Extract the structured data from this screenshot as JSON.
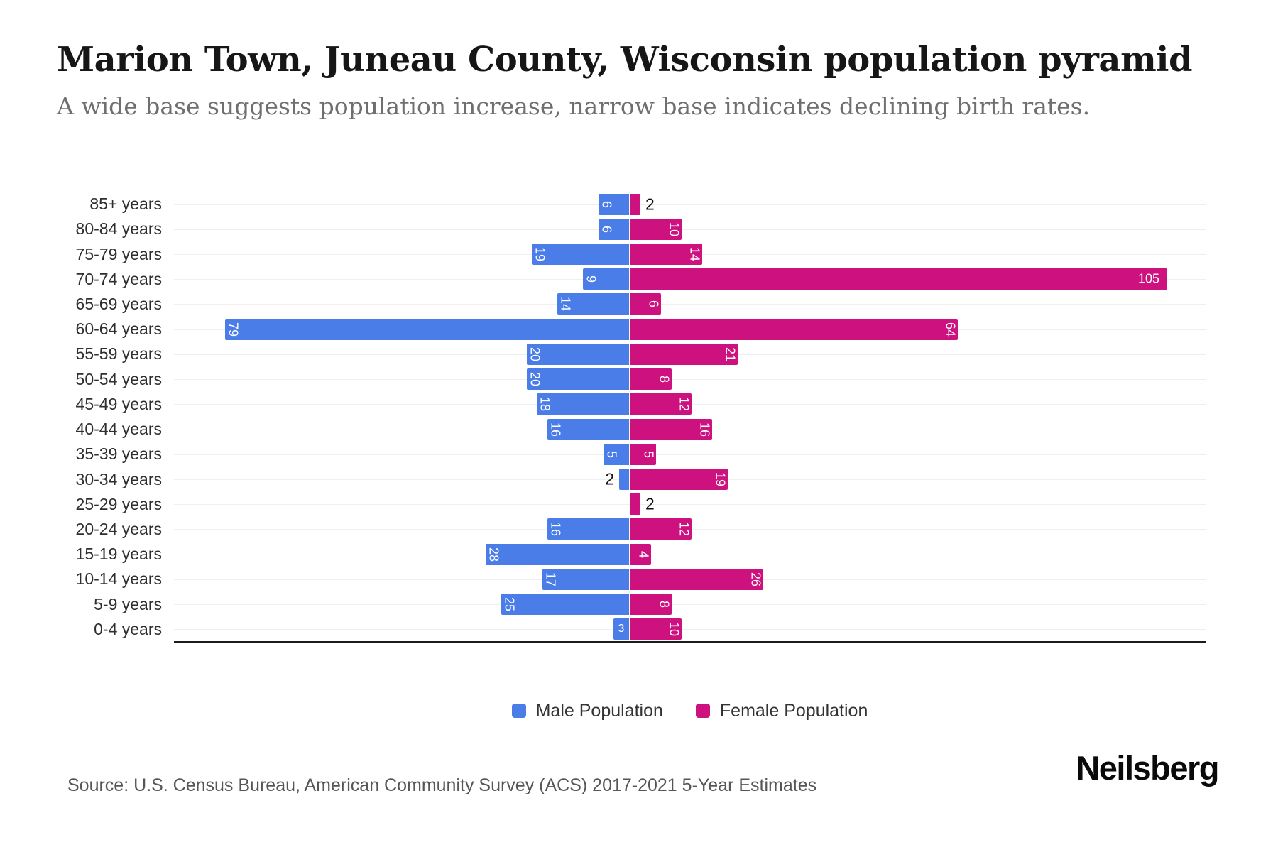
{
  "header": {
    "title": "Marion Town, Juneau County, Wisconsin population pyramid",
    "subtitle": "A wide base suggests population increase, narrow base indicates declining birth rates."
  },
  "colors": {
    "male": "#4a7de8",
    "female": "#cd117f",
    "axis": "#1b1b1b",
    "grid": "#efeff0",
    "inside_label": "#ffffff",
    "outside_label": "#111111"
  },
  "chart_data": {
    "type": "bar",
    "variant": "population-pyramid",
    "orientation": "horizontal",
    "grid": true,
    "legend_position": "bottom-center",
    "categories": [
      "85+ years",
      "80-84 years",
      "75-79 years",
      "70-74 years",
      "65-69 years",
      "60-64 years",
      "55-59 years",
      "50-54 years",
      "45-49 years",
      "40-44 years",
      "35-39 years",
      "30-34 years",
      "25-29 years",
      "20-24 years",
      "15-19 years",
      "10-14 years",
      "5-9 years",
      "0-4 years"
    ],
    "series": [
      {
        "name": "Male Population",
        "side": "left",
        "color": "#4a7de8",
        "values": [
          6,
          6,
          19,
          9,
          14,
          79,
          20,
          20,
          18,
          16,
          5,
          2,
          0,
          16,
          28,
          17,
          25,
          3
        ],
        "label_styles": [
          "rotated",
          "rotated",
          "rotated",
          "rotated",
          "rotated",
          "rotated",
          "rotated",
          "rotated",
          "rotated",
          "rotated",
          "rotated",
          "outside",
          "none",
          "rotated",
          "rotated",
          "rotated",
          "rotated",
          "horizontal"
        ]
      },
      {
        "name": "Female Population",
        "side": "right",
        "color": "#cd117f",
        "values": [
          2,
          10,
          14,
          105,
          6,
          64,
          21,
          8,
          12,
          16,
          5,
          19,
          2,
          12,
          4,
          26,
          8,
          10
        ],
        "label_styles": [
          "outside",
          "rotated",
          "rotated",
          "horizontal",
          "rotated",
          "rotated",
          "rotated",
          "rotated",
          "rotated",
          "rotated",
          "rotated",
          "rotated",
          "outside",
          "rotated",
          "rotated",
          "rotated",
          "rotated",
          "rotated"
        ]
      }
    ],
    "value_axis_max": 105
  },
  "legend": {
    "items": [
      {
        "label": "Male Population",
        "color": "#4a7de8"
      },
      {
        "label": "Female Population",
        "color": "#cd117f"
      }
    ]
  },
  "footer": {
    "source": "Source: U.S. Census Bureau, American Community Survey (ACS) 2017-2021 5-Year Estimates",
    "brand": "Neilsberg"
  }
}
